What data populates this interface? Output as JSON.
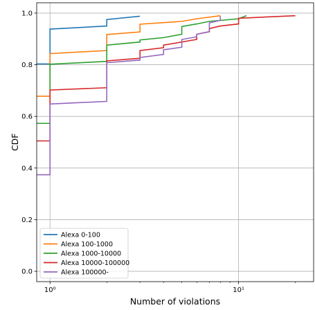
{
  "chart_data": {
    "type": "line",
    "step": true,
    "xlabel": "Number of violations",
    "ylabel": "CDF",
    "x_scale": "log",
    "xlim": [
      0.85,
      25
    ],
    "ylim": [
      -0.04,
      1.04
    ],
    "x_ticks": [
      {
        "value": 1,
        "label": "10⁰"
      },
      {
        "value": 10,
        "label": "10¹"
      }
    ],
    "y_ticks": [
      0.0,
      0.2,
      0.4,
      0.6,
      0.8,
      1.0
    ],
    "y_tick_labels": [
      "0.0",
      "0.2",
      "0.4",
      "0.6",
      "0.8",
      "1.0"
    ],
    "grid": true,
    "legend_position": "lower-left",
    "series": [
      {
        "name": "Alexa 0-100",
        "color": "#1f77b4",
        "points": [
          [
            0.85,
            0.803
          ],
          [
            1,
            0.803
          ],
          [
            1,
            0.938
          ],
          [
            2,
            0.95
          ],
          [
            2,
            0.975
          ],
          [
            3,
            0.988
          ]
        ]
      },
      {
        "name": "Alexa 100-1000",
        "color": "#ff7f0e",
        "points": [
          [
            0.85,
            0.678
          ],
          [
            1,
            0.678
          ],
          [
            1,
            0.843
          ],
          [
            2,
            0.855
          ],
          [
            2,
            0.917
          ],
          [
            3,
            0.927
          ],
          [
            3,
            0.957
          ],
          [
            5,
            0.968
          ],
          [
            6,
            0.978
          ],
          [
            8,
            0.99
          ]
        ]
      },
      {
        "name": "Alexa 1000-10000",
        "color": "#2ca02c",
        "points": [
          [
            0.85,
            0.573
          ],
          [
            1,
            0.573
          ],
          [
            1,
            0.802
          ],
          [
            2,
            0.813
          ],
          [
            2,
            0.876
          ],
          [
            3,
            0.888
          ],
          [
            3,
            0.896
          ],
          [
            4,
            0.905
          ],
          [
            5,
            0.918
          ],
          [
            5,
            0.948
          ],
          [
            6,
            0.958
          ],
          [
            7,
            0.968
          ],
          [
            10,
            0.978
          ],
          [
            11,
            0.99
          ]
        ]
      },
      {
        "name": "Alexa 10000-100000",
        "color": "#d62728",
        "points": [
          [
            0.85,
            0.505
          ],
          [
            1,
            0.505
          ],
          [
            1,
            0.702
          ],
          [
            2,
            0.711
          ],
          [
            2,
            0.815
          ],
          [
            3,
            0.825
          ],
          [
            3,
            0.855
          ],
          [
            4,
            0.866
          ],
          [
            4,
            0.876
          ],
          [
            5,
            0.888
          ],
          [
            6,
            0.898
          ],
          [
            6,
            0.918
          ],
          [
            7,
            0.928
          ],
          [
            7,
            0.94
          ],
          [
            8,
            0.95
          ],
          [
            10,
            0.958
          ],
          [
            10,
            0.98
          ],
          [
            20,
            0.99
          ]
        ]
      },
      {
        "name": "Alexa 100000-",
        "color": "#9467bd",
        "points": [
          [
            0.85,
            0.374
          ],
          [
            1,
            0.374
          ],
          [
            1,
            0.648
          ],
          [
            2,
            0.658
          ],
          [
            2,
            0.808
          ],
          [
            3,
            0.818
          ],
          [
            3,
            0.828
          ],
          [
            4,
            0.84
          ],
          [
            4,
            0.858
          ],
          [
            5,
            0.868
          ],
          [
            5,
            0.898
          ],
          [
            6,
            0.908
          ],
          [
            6,
            0.918
          ],
          [
            7,
            0.928
          ],
          [
            7,
            0.962
          ],
          [
            8,
            0.972
          ],
          [
            8,
            0.988
          ]
        ]
      }
    ]
  }
}
